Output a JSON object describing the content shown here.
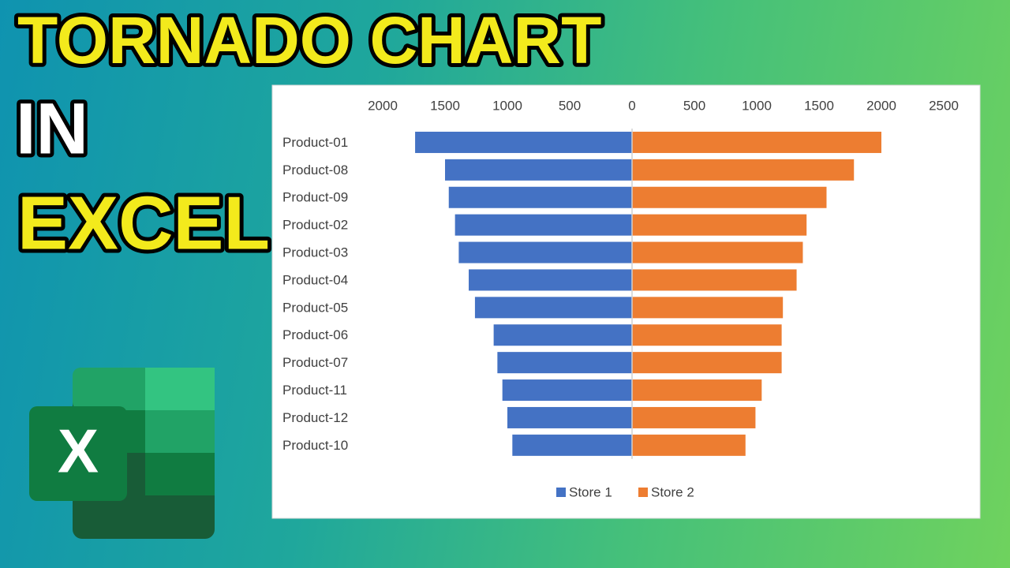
{
  "headline": [
    "TORNADO CHART",
    "IN",
    "EXCEL"
  ],
  "logo_text": "X",
  "chart_data": {
    "type": "tornado",
    "categories": [
      "Product-01",
      "Product-08",
      "Product-09",
      "Product-02",
      "Product-03",
      "Product-04",
      "Product-05",
      "Product-06",
      "Product-07",
      "Product-11",
      "Product-12",
      "Product-10"
    ],
    "series": [
      {
        "name": "Store 1",
        "color": "#4472c4",
        "values": [
          -1740,
          -1500,
          -1470,
          -1420,
          -1390,
          -1310,
          -1260,
          -1110,
          -1080,
          -1040,
          -1000,
          -960
        ]
      },
      {
        "name": "Store 2",
        "color": "#ed7d31",
        "values": [
          2000,
          1780,
          1560,
          1400,
          1370,
          1320,
          1210,
          1200,
          1200,
          1040,
          990,
          910
        ]
      }
    ],
    "xlim": [
      -2000,
      2500
    ],
    "xticks": [
      {
        "value": -2000,
        "label": "2000"
      },
      {
        "value": -1500,
        "label": "1500"
      },
      {
        "value": -1000,
        "label": "1000"
      },
      {
        "value": -500,
        "label": "500"
      },
      0,
      500,
      1000,
      1500,
      2000,
      2500
    ],
    "grid": false,
    "legend": "bottom"
  }
}
